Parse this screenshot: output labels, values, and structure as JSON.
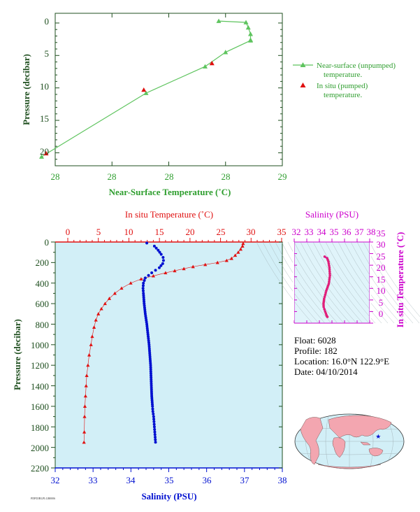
{
  "colors": {
    "axis_green": "#1f4f1f",
    "label_green": "#2e9e2e",
    "line_green": "#5ec45e",
    "insitu_red": "#e01010",
    "salinity_blue": "#0010d0",
    "magenta": "#cc00cc",
    "panel_bg": "#d2eff7",
    "land": "#f3a6b0"
  },
  "top_panel": {
    "ylabel": "Pressure (decibar)",
    "xlabel": "Near-Surface Temperature (˚C)",
    "x_tick_labels": [
      "28",
      "28",
      "28",
      "28",
      "29"
    ],
    "y_tick_labels": [
      "0",
      "5",
      "10",
      "15",
      "20"
    ],
    "legend": {
      "near_surface_line1": "Near-surface (unpumped)",
      "near_surface_line2": "temperature.",
      "insitu_line1": "In situ (pumped)",
      "insitu_line2": "temperature."
    }
  },
  "main_panel": {
    "top_axis_label": "In situ Temperature (˚C)",
    "bottom_axis_label": "Salinity (PSU)",
    "ylabel": "Pressure (decibar)",
    "temp_tick_labels": [
      "0",
      "5",
      "10",
      "15",
      "20",
      "25",
      "30",
      "35"
    ],
    "sal_tick_labels": [
      "32",
      "33",
      "34",
      "35",
      "36",
      "37",
      "38"
    ],
    "pressure_tick_labels": [
      "0",
      "200",
      "400",
      "600",
      "800",
      "1000",
      "1200",
      "1400",
      "1600",
      "1800",
      "2000",
      "2200"
    ]
  },
  "ts_panel": {
    "top_label": "Salinity (PSU)",
    "right_label": "In situ Temperature (˚C)",
    "sal_tick_labels": [
      "32",
      "33",
      "34",
      "35",
      "36",
      "37",
      "38"
    ],
    "temp_tick_labels": [
      "0",
      "5",
      "10",
      "15",
      "20",
      "25",
      "30",
      "35"
    ]
  },
  "info": {
    "float": "Float:  6028",
    "profile": "Profile:  182",
    "location": "Location:  16.0°N  122.9°E",
    "date": "Date:  04/10/2014"
  },
  "footer_code": "PDPDJBLPLGB0006",
  "chart_data": [
    {
      "type": "line",
      "name": "near-surface temperature profile",
      "xlabel": "Near-Surface Temperature (˚C)",
      "ylabel": "Pressure (decibar)",
      "xlim": [
        28.0,
        29.0
      ],
      "ylim": [
        22,
        -1.5
      ],
      "series": [
        {
          "name": "Near-surface (unpumped) temperature.",
          "marker": "triangle",
          "x": [
            28.72,
            28.84,
            28.85,
            28.86,
            28.86,
            28.86,
            28.75,
            28.66,
            28.4,
            27.94
          ],
          "y": [
            -0.3,
            -0.1,
            0.7,
            1.7,
            2.6,
            2.7,
            4.5,
            6.7,
            10.8,
            20.6
          ]
        },
        {
          "name": "In situ (pumped) temperature.",
          "marker": "triangle",
          "x": [
            28.69,
            28.39,
            27.96
          ],
          "y": [
            6.2,
            10.3,
            20.1
          ]
        }
      ]
    },
    {
      "type": "scatter",
      "name": "in situ temperature vs pressure",
      "xlabel": "In situ Temperature (˚C)",
      "ylabel": "Pressure (decibar)",
      "xlim": [
        0,
        35
      ],
      "ylim": [
        2200,
        0
      ],
      "x": [
        28.7,
        28.6,
        28.3,
        27.9,
        27.4,
        26.8,
        26.0,
        24.5,
        22.5,
        20.5,
        19.0,
        17.5,
        16.0,
        14.0,
        12.0,
        10.3,
        8.8,
        7.7,
        6.8,
        6.1,
        5.5,
        5.0,
        4.6,
        4.3,
        4.0,
        3.8,
        3.5,
        3.3,
        3.1,
        3.0,
        2.9,
        2.8,
        2.75,
        2.7,
        2.65
      ],
      "y": [
        15,
        40,
        70,
        100,
        130,
        160,
        180,
        200,
        220,
        240,
        260,
        280,
        300,
        330,
        360,
        400,
        450,
        500,
        550,
        600,
        650,
        700,
        760,
        830,
        920,
        1000,
        1100,
        1200,
        1300,
        1400,
        1500,
        1600,
        1700,
        1850,
        1950
      ]
    },
    {
      "type": "scatter",
      "name": "salinity vs pressure",
      "xlabel": "Salinity (PSU)",
      "ylabel": "Pressure (decibar)",
      "xlim": [
        32,
        38
      ],
      "ylim": [
        2200,
        0
      ],
      "x": [
        34.42,
        34.62,
        34.72,
        34.8,
        34.85,
        34.86,
        34.84,
        34.75,
        34.55,
        34.38,
        34.33,
        34.32,
        34.33,
        34.35,
        34.38,
        34.42,
        34.45,
        34.48,
        34.5,
        34.52,
        34.53,
        34.54,
        34.55,
        34.57,
        34.58,
        34.6,
        34.61,
        34.62,
        34.63,
        34.64,
        34.65
      ],
      "y": [
        10,
        40,
        80,
        120,
        150,
        180,
        210,
        250,
        300,
        350,
        400,
        450,
        500,
        600,
        700,
        800,
        900,
        1000,
        1100,
        1200,
        1300,
        1400,
        1500,
        1600,
        1650,
        1700,
        1750,
        1800,
        1850,
        1900,
        1950
      ]
    },
    {
      "type": "scatter",
      "name": "temperature-salinity diagram",
      "xlabel": "Salinity (PSU)",
      "ylabel": "In situ Temperature (˚C)",
      "xlim": [
        32,
        38
      ],
      "ylim": [
        0,
        35
      ],
      "x": [
        34.42,
        34.62,
        34.72,
        34.8,
        34.84,
        34.75,
        34.55,
        34.38,
        34.33,
        34.34,
        34.4,
        34.46,
        34.52,
        34.56,
        34.6,
        34.64
      ],
      "y": [
        28.7,
        28.0,
        26.5,
        24.0,
        20.5,
        17.0,
        14.0,
        10.5,
        8.5,
        7.0,
        6.0,
        5.0,
        4.2,
        3.5,
        3.0,
        2.7
      ]
    }
  ]
}
